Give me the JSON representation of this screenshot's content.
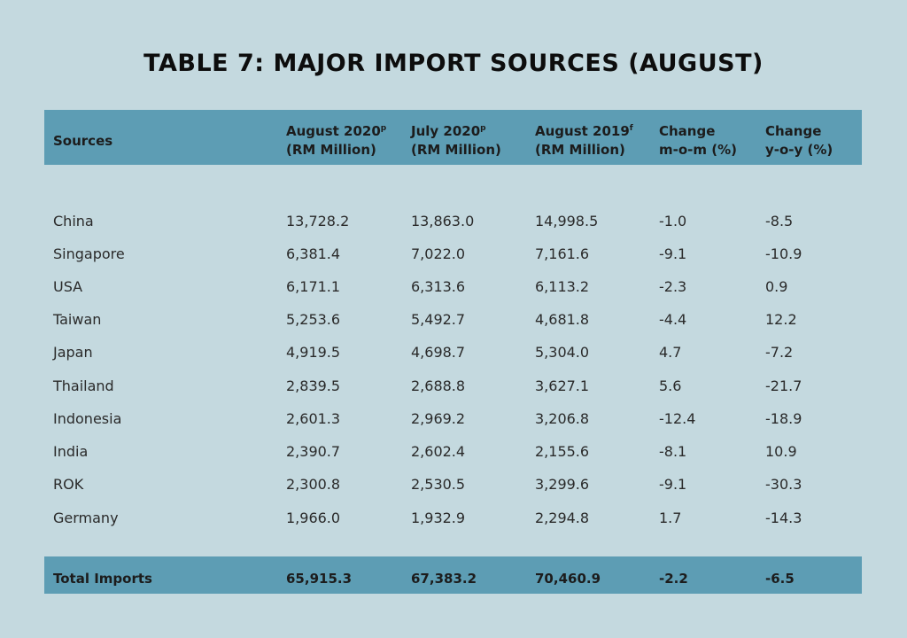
{
  "title": "TABLE 7: MAJOR IMPORT SOURCES (AUGUST)",
  "headers": {
    "sources": "Sources",
    "aug2020": {
      "line1": "August 2020",
      "sup": "p",
      "line2": "(RM Million)"
    },
    "jul2020": {
      "line1": "July 2020",
      "sup": "p",
      "line2": "(RM Million)"
    },
    "aug2019": {
      "line1": "August 2019",
      "sup": "f",
      "line2": "(RM Million)"
    },
    "mom": {
      "line1": "Change",
      "line2": "m-o-m (%)"
    },
    "yoy": {
      "line1": "Change",
      "line2": "y-o-y (%)"
    }
  },
  "rows": [
    {
      "source": "China",
      "aug2020": "13,728.2",
      "jul2020": "13,863.0",
      "aug2019": "14,998.5",
      "mom": "-1.0",
      "yoy": "-8.5"
    },
    {
      "source": "Singapore",
      "aug2020": "6,381.4",
      "jul2020": "7,022.0",
      "aug2019": "7,161.6",
      "mom": "-9.1",
      "yoy": "-10.9"
    },
    {
      "source": "USA",
      "aug2020": "6,171.1",
      "jul2020": "6,313.6",
      "aug2019": "6,113.2",
      "mom": "-2.3",
      "yoy": "0.9"
    },
    {
      "source": "Taiwan",
      "aug2020": "5,253.6",
      "jul2020": "5,492.7",
      "aug2019": "4,681.8",
      "mom": "-4.4",
      "yoy": "12.2"
    },
    {
      "source": "Japan",
      "aug2020": "4,919.5",
      "jul2020": "4,698.7",
      "aug2019": "5,304.0",
      "mom": "4.7",
      "yoy": "-7.2"
    },
    {
      "source": "Thailand",
      "aug2020": "2,839.5",
      "jul2020": "2,688.8",
      "aug2019": "3,627.1",
      "mom": "5.6",
      "yoy": "-21.7"
    },
    {
      "source": "Indonesia",
      "aug2020": "2,601.3",
      "jul2020": "2,969.2",
      "aug2019": "3,206.8",
      "mom": "-12.4",
      "yoy": "-18.9"
    },
    {
      "source": "India",
      "aug2020": "2,390.7",
      "jul2020": "2,602.4",
      "aug2019": "2,155.6",
      "mom": "-8.1",
      "yoy": "10.9"
    },
    {
      "source": "ROK",
      "aug2020": "2,300.8",
      "jul2020": "2,530.5",
      "aug2019": "3,299.6",
      "mom": "-9.1",
      "yoy": "-30.3"
    },
    {
      "source": "Germany",
      "aug2020": "1,966.0",
      "jul2020": "1,932.9",
      "aug2019": "2,294.8",
      "mom": "1.7",
      "yoy": "-14.3"
    }
  ],
  "total": {
    "source": "Total Imports",
    "aug2020": "65,915.3",
    "jul2020": "67,383.2",
    "aug2019": "70,460.9",
    "mom": "-2.2",
    "yoy": "-6.5"
  }
}
